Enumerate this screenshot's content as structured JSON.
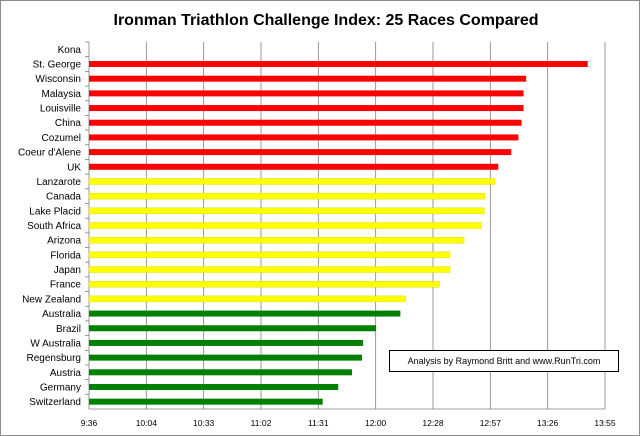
{
  "chart_data": {
    "type": "bar",
    "orientation": "horizontal",
    "title": "Ironman Triathlon Challenge Index: 25 Races Compared",
    "annotation": "Analysis by Raymond Britt and www.RunTri.com",
    "xlabel": "",
    "ylabel": "",
    "x_ticks": [
      "9:36",
      "10:04",
      "10:33",
      "11:02",
      "11:31",
      "12:00",
      "12:28",
      "12:57",
      "13:26",
      "13:55"
    ],
    "x_tick_minutes": [
      576,
      604.8,
      633.6,
      662.4,
      691.2,
      720,
      748.8,
      777.6,
      806.4,
      835.2
    ],
    "xlim_minutes": [
      576,
      835.2
    ],
    "grid": "vertical",
    "legend": "none",
    "categories": [
      "Kona",
      "St. George",
      "Wisconsin",
      "Malaysia",
      "Louisville",
      "China",
      "Cozumel",
      "Coeur d'Alene",
      "UK",
      "Lanzarote",
      "Canada",
      "Lake Placid",
      "South Africa",
      "Arizona",
      "Florida",
      "Japan",
      "France",
      "New Zealand",
      "Australia",
      "Brazil",
      "W Australia",
      "Regensburg",
      "Austria",
      "Germany",
      "Switzerland"
    ],
    "values_minutes": [
      null,
      826.5,
      795.6,
      794.3,
      794.3,
      793.3,
      791.7,
      788.1,
      781.6,
      780.0,
      774.9,
      774.6,
      773.3,
      764.4,
      757.4,
      757.4,
      752.0,
      735.1,
      732.4,
      720.2,
      713.7,
      713.1,
      708.1,
      701.2,
      693.4
    ],
    "bar_colors": [
      "",
      "#ff0000",
      "#ff0000",
      "#ff0000",
      "#ff0000",
      "#ff0000",
      "#ff0000",
      "#ff0000",
      "#ff0000",
      "#ffff00",
      "#ffff00",
      "#ffff00",
      "#ffff00",
      "#ffff00",
      "#ffff00",
      "#ffff00",
      "#ffff00",
      "#ffff00",
      "#008000",
      "#008000",
      "#008000",
      "#008000",
      "#008000",
      "#008000",
      "#008000"
    ],
    "colors": {
      "red": "#ff0000",
      "yellow": "#ffff00",
      "green": "#008000",
      "grid": "#808080"
    }
  }
}
